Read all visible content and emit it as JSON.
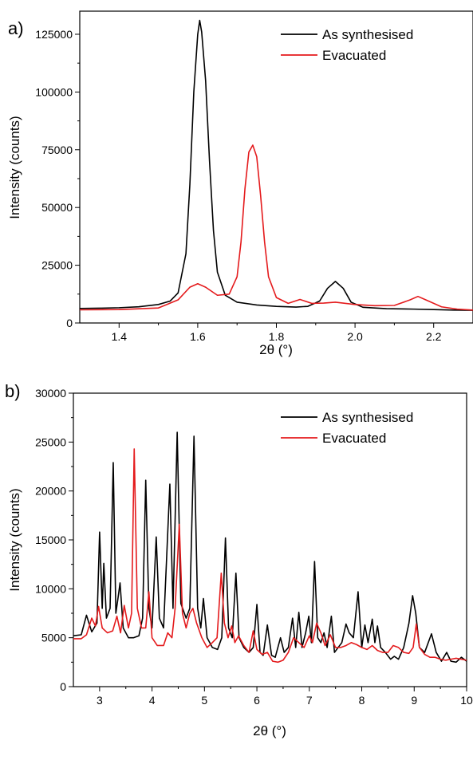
{
  "chart_data": [
    {
      "type": "line",
      "panel_label": "a)",
      "xlabel": "2θ (°)",
      "ylabel": "Intensity (counts)",
      "xlim": [
        1.3,
        2.3
      ],
      "ylim": [
        0,
        135000
      ],
      "xticks": [
        1.4,
        1.6,
        1.8,
        2.0,
        2.2
      ],
      "yticks": [
        0,
        25000,
        50000,
        75000,
        100000,
        125000
      ],
      "legend_position": "top-right",
      "series": [
        {
          "name": "As synthesised",
          "color": "#000000",
          "points": [
            [
              1.3,
              6300
            ],
            [
              1.35,
              6400
            ],
            [
              1.4,
              6600
            ],
            [
              1.45,
              7000
            ],
            [
              1.5,
              8000
            ],
            [
              1.53,
              9500
            ],
            [
              1.55,
              13000
            ],
            [
              1.57,
              30000
            ],
            [
              1.58,
              60000
            ],
            [
              1.59,
              100000
            ],
            [
              1.6,
              125000
            ],
            [
              1.605,
              131000
            ],
            [
              1.61,
              126000
            ],
            [
              1.62,
              105000
            ],
            [
              1.63,
              70000
            ],
            [
              1.64,
              40000
            ],
            [
              1.65,
              22000
            ],
            [
              1.67,
              12000
            ],
            [
              1.7,
              9000
            ],
            [
              1.75,
              7800
            ],
            [
              1.8,
              7200
            ],
            [
              1.85,
              6900
            ],
            [
              1.88,
              7200
            ],
            [
              1.91,
              9500
            ],
            [
              1.93,
              15000
            ],
            [
              1.95,
              18000
            ],
            [
              1.97,
              15000
            ],
            [
              1.99,
              9000
            ],
            [
              2.02,
              6800
            ],
            [
              2.08,
              6200
            ],
            [
              2.15,
              6000
            ],
            [
              2.2,
              5800
            ],
            [
              2.25,
              5600
            ],
            [
              2.3,
              5500
            ]
          ]
        },
        {
          "name": "Evacuated",
          "color": "#e41a1c",
          "points": [
            [
              1.3,
              5700
            ],
            [
              1.4,
              5800
            ],
            [
              1.5,
              6500
            ],
            [
              1.55,
              10000
            ],
            [
              1.58,
              15500
            ],
            [
              1.6,
              17000
            ],
            [
              1.62,
              15500
            ],
            [
              1.65,
              12000
            ],
            [
              1.68,
              12500
            ],
            [
              1.7,
              20000
            ],
            [
              1.71,
              35000
            ],
            [
              1.72,
              58000
            ],
            [
              1.73,
              74000
            ],
            [
              1.74,
              77000
            ],
            [
              1.75,
              72000
            ],
            [
              1.76,
              55000
            ],
            [
              1.77,
              35000
            ],
            [
              1.78,
              20000
            ],
            [
              1.8,
              11000
            ],
            [
              1.83,
              8500
            ],
            [
              1.86,
              10200
            ],
            [
              1.89,
              8500
            ],
            [
              1.92,
              8600
            ],
            [
              1.95,
              9000
            ],
            [
              2.0,
              8000
            ],
            [
              2.05,
              7500
            ],
            [
              2.1,
              7600
            ],
            [
              2.14,
              10000
            ],
            [
              2.16,
              11500
            ],
            [
              2.18,
              10000
            ],
            [
              2.22,
              7000
            ],
            [
              2.26,
              6000
            ],
            [
              2.3,
              5600
            ]
          ]
        }
      ]
    },
    {
      "type": "line",
      "panel_label": "b)",
      "xlabel": "2θ (°)",
      "ylabel": "Intensity (counts)",
      "xlim": [
        2.5,
        10
      ],
      "ylim": [
        0,
        30000
      ],
      "xticks": [
        3,
        4,
        5,
        6,
        7,
        8,
        9,
        10
      ],
      "yticks": [
        0,
        5000,
        10000,
        15000,
        20000,
        25000,
        30000
      ],
      "legend_position": "top-right",
      "series": [
        {
          "name": "As synthesised",
          "color": "#000000",
          "points": [
            [
              2.5,
              5200
            ],
            [
              2.65,
              5300
            ],
            [
              2.75,
              7300
            ],
            [
              2.85,
              5600
            ],
            [
              2.95,
              6500
            ],
            [
              3.0,
              15800
            ],
            [
              3.05,
              8000
            ],
            [
              3.08,
              12600
            ],
            [
              3.13,
              7000
            ],
            [
              3.2,
              8000
            ],
            [
              3.26,
              22900
            ],
            [
              3.31,
              7500
            ],
            [
              3.35,
              9000
            ],
            [
              3.39,
              10600
            ],
            [
              3.45,
              6000
            ],
            [
              3.55,
              5000
            ],
            [
              3.65,
              5000
            ],
            [
              3.75,
              5200
            ],
            [
              3.82,
              7000
            ],
            [
              3.88,
              21100
            ],
            [
              3.94,
              8000
            ],
            [
              4.0,
              6000
            ],
            [
              4.08,
              15300
            ],
            [
              4.14,
              7000
            ],
            [
              4.22,
              6000
            ],
            [
              4.34,
              20700
            ],
            [
              4.4,
              8000
            ],
            [
              4.48,
              26000
            ],
            [
              4.55,
              8500
            ],
            [
              4.65,
              7000
            ],
            [
              4.72,
              8000
            ],
            [
              4.8,
              25600
            ],
            [
              4.87,
              8000
            ],
            [
              4.93,
              6000
            ],
            [
              4.98,
              9000
            ],
            [
              5.05,
              5000
            ],
            [
              5.15,
              4000
            ],
            [
              5.25,
              3800
            ],
            [
              5.33,
              5000
            ],
            [
              5.4,
              15200
            ],
            [
              5.46,
              6000
            ],
            [
              5.53,
              5000
            ],
            [
              5.6,
              11600
            ],
            [
              5.66,
              5000
            ],
            [
              5.75,
              4000
            ],
            [
              5.85,
              3500
            ],
            [
              5.93,
              4000
            ],
            [
              6.0,
              8400
            ],
            [
              6.06,
              3500
            ],
            [
              6.12,
              3200
            ],
            [
              6.2,
              6300
            ],
            [
              6.28,
              3200
            ],
            [
              6.35,
              3000
            ],
            [
              6.45,
              5000
            ],
            [
              6.52,
              3500
            ],
            [
              6.6,
              4000
            ],
            [
              6.68,
              7000
            ],
            [
              6.74,
              4000
            ],
            [
              6.8,
              7600
            ],
            [
              6.86,
              4000
            ],
            [
              6.93,
              5500
            ],
            [
              6.99,
              7200
            ],
            [
              7.04,
              4500
            ],
            [
              7.1,
              12800
            ],
            [
              7.16,
              5000
            ],
            [
              7.22,
              4500
            ],
            [
              7.28,
              5500
            ],
            [
              7.34,
              4000
            ],
            [
              7.42,
              7200
            ],
            [
              7.48,
              3500
            ],
            [
              7.55,
              4000
            ],
            [
              7.62,
              4500
            ],
            [
              7.7,
              6400
            ],
            [
              7.76,
              5500
            ],
            [
              7.84,
              5000
            ],
            [
              7.93,
              9700
            ],
            [
              8.0,
              4000
            ],
            [
              8.06,
              6300
            ],
            [
              8.12,
              4500
            ],
            [
              8.2,
              6900
            ],
            [
              8.25,
              4500
            ],
            [
              8.3,
              6200
            ],
            [
              8.36,
              4000
            ],
            [
              8.45,
              3500
            ],
            [
              8.55,
              2800
            ],
            [
              8.62,
              3100
            ],
            [
              8.7,
              2800
            ],
            [
              8.8,
              4000
            ],
            [
              8.9,
              6500
            ],
            [
              8.97,
              9300
            ],
            [
              9.03,
              7500
            ],
            [
              9.1,
              4000
            ],
            [
              9.2,
              3500
            ],
            [
              9.33,
              5400
            ],
            [
              9.42,
              3500
            ],
            [
              9.52,
              2600
            ],
            [
              9.62,
              3500
            ],
            [
              9.7,
              2600
            ],
            [
              9.8,
              2500
            ],
            [
              9.9,
              3000
            ],
            [
              10.0,
              2600
            ]
          ]
        },
        {
          "name": "Evacuated",
          "color": "#e41a1c",
          "points": [
            [
              2.5,
              4900
            ],
            [
              2.65,
              4900
            ],
            [
              2.75,
              5300
            ],
            [
              2.85,
              7000
            ],
            [
              2.92,
              6200
            ],
            [
              2.98,
              8200
            ],
            [
              3.05,
              6000
            ],
            [
              3.15,
              5500
            ],
            [
              3.25,
              5700
            ],
            [
              3.33,
              7200
            ],
            [
              3.4,
              5500
            ],
            [
              3.47,
              8300
            ],
            [
              3.55,
              6000
            ],
            [
              3.61,
              7500
            ],
            [
              3.66,
              24300
            ],
            [
              3.72,
              8000
            ],
            [
              3.8,
              6000
            ],
            [
              3.88,
              6000
            ],
            [
              3.94,
              9700
            ],
            [
              4.0,
              5000
            ],
            [
              4.1,
              4200
            ],
            [
              4.22,
              4200
            ],
            [
              4.3,
              5500
            ],
            [
              4.38,
              5000
            ],
            [
              4.44,
              8000
            ],
            [
              4.52,
              16600
            ],
            [
              4.58,
              7500
            ],
            [
              4.65,
              6000
            ],
            [
              4.72,
              7500
            ],
            [
              4.78,
              8000
            ],
            [
              4.85,
              6500
            ],
            [
              4.95,
              5000
            ],
            [
              5.05,
              4000
            ],
            [
              5.15,
              4500
            ],
            [
              5.24,
              5000
            ],
            [
              5.32,
              11600
            ],
            [
              5.38,
              6500
            ],
            [
              5.45,
              5000
            ],
            [
              5.52,
              6200
            ],
            [
              5.58,
              4500
            ],
            [
              5.65,
              5200
            ],
            [
              5.75,
              4200
            ],
            [
              5.85,
              3500
            ],
            [
              5.93,
              5700
            ],
            [
              6.0,
              3800
            ],
            [
              6.1,
              3300
            ],
            [
              6.2,
              3500
            ],
            [
              6.3,
              2600
            ],
            [
              6.4,
              2500
            ],
            [
              6.5,
              2700
            ],
            [
              6.6,
              3500
            ],
            [
              6.7,
              5000
            ],
            [
              6.8,
              4500
            ],
            [
              6.9,
              4000
            ],
            [
              7.0,
              5200
            ],
            [
              7.06,
              4500
            ],
            [
              7.14,
              6500
            ],
            [
              7.22,
              5500
            ],
            [
              7.3,
              4200
            ],
            [
              7.4,
              5300
            ],
            [
              7.5,
              4000
            ],
            [
              7.6,
              4000
            ],
            [
              7.7,
              4200
            ],
            [
              7.8,
              4500
            ],
            [
              7.9,
              4300
            ],
            [
              8.0,
              4000
            ],
            [
              8.1,
              3800
            ],
            [
              8.2,
              4200
            ],
            [
              8.3,
              3700
            ],
            [
              8.4,
              3500
            ],
            [
              8.5,
              3500
            ],
            [
              8.6,
              4200
            ],
            [
              8.7,
              4000
            ],
            [
              8.8,
              3500
            ],
            [
              8.9,
              3400
            ],
            [
              8.98,
              4000
            ],
            [
              9.04,
              6400
            ],
            [
              9.1,
              4000
            ],
            [
              9.2,
              3300
            ],
            [
              9.3,
              3000
            ],
            [
              9.4,
              3000
            ],
            [
              9.5,
              2800
            ],
            [
              9.6,
              2700
            ],
            [
              9.7,
              2800
            ],
            [
              9.8,
              2900
            ],
            [
              9.9,
              2800
            ],
            [
              10.0,
              2700
            ]
          ]
        }
      ]
    }
  ]
}
